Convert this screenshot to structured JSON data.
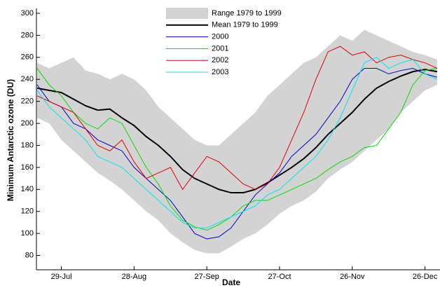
{
  "chart_data": {
    "type": "line",
    "x_label": "Date",
    "y_label": "Minimum Antarctic ozone (DU)",
    "categories": [
      null,
      null,
      "29-Jul",
      null,
      null,
      null,
      null,
      null,
      "28-Aug",
      null,
      null,
      null,
      null,
      null,
      "27-Sep",
      null,
      null,
      null,
      null,
      null,
      "27-Oct",
      null,
      null,
      null,
      null,
      null,
      "26-Nov",
      null,
      null,
      null,
      null,
      null,
      "26-Dec",
      null
    ],
    "ylim": [
      67,
      300
    ],
    "yticks": [
      80,
      100,
      120,
      140,
      160,
      180,
      200,
      220,
      240,
      260,
      280,
      300
    ],
    "range": {
      "name": "Range 1979 to 1999",
      "color": "#d3d3d3",
      "low": [
        205,
        200,
        185,
        175,
        165,
        155,
        148,
        140,
        130,
        120,
        112,
        100,
        92,
        85,
        82,
        82,
        88,
        95,
        100,
        108,
        118,
        125,
        130,
        138,
        150,
        158,
        165,
        175,
        185,
        195,
        210,
        220,
        230,
        235
      ],
      "high": [
        255,
        250,
        255,
        260,
        248,
        245,
        240,
        245,
        240,
        230,
        215,
        205,
        195,
        185,
        180,
        180,
        190,
        200,
        210,
        225,
        235,
        245,
        255,
        260,
        270,
        280,
        275,
        285,
        280,
        275,
        270,
        265,
        262,
        258
      ]
    },
    "series": [
      {
        "name": "Mean 1979 to 1999",
        "color": "#000000",
        "width": 2,
        "values": [
          232,
          230,
          228,
          222,
          216,
          212,
          213,
          205,
          198,
          188,
          180,
          170,
          158,
          150,
          145,
          140,
          137,
          137,
          140,
          146,
          153,
          160,
          168,
          178,
          190,
          200,
          210,
          222,
          232,
          238,
          243,
          247,
          249,
          247
        ]
      },
      {
        "name": "2000",
        "color": "#0000cc",
        "width": 1,
        "values": [
          235,
          220,
          215,
          200,
          195,
          185,
          180,
          175,
          160,
          150,
          140,
          130,
          115,
          100,
          95,
          97,
          105,
          120,
          135,
          145,
          155,
          170,
          180,
          190,
          205,
          220,
          240,
          250,
          250,
          245,
          248,
          250,
          245,
          242
        ]
      },
      {
        "name": "2001",
        "color": "#00dd00",
        "width": 1,
        "values": [
          250,
          235,
          225,
          210,
          200,
          195,
          205,
          200,
          180,
          160,
          145,
          125,
          112,
          106,
          103,
          108,
          115,
          125,
          130,
          130,
          135,
          140,
          145,
          150,
          158,
          165,
          170,
          178,
          180,
          195,
          210,
          235,
          248,
          250
        ]
      },
      {
        "name": "2002",
        "color": "#dd0000",
        "width": 1,
        "values": [
          225,
          220,
          215,
          210,
          195,
          180,
          175,
          185,
          165,
          150,
          155,
          160,
          140,
          155,
          170,
          165,
          155,
          145,
          140,
          145,
          160,
          185,
          210,
          240,
          265,
          270,
          262,
          265,
          255,
          260,
          262,
          258,
          255,
          250
        ]
      },
      {
        "name": "2003",
        "color": "#00e5ee",
        "width": 1,
        "values": [
          230,
          215,
          205,
          195,
          185,
          170,
          165,
          160,
          150,
          140,
          130,
          120,
          110,
          105,
          105,
          110,
          115,
          120,
          125,
          135,
          140,
          150,
          160,
          170,
          185,
          205,
          230,
          255,
          260,
          250,
          255,
          258,
          245,
          240
        ]
      }
    ]
  }
}
